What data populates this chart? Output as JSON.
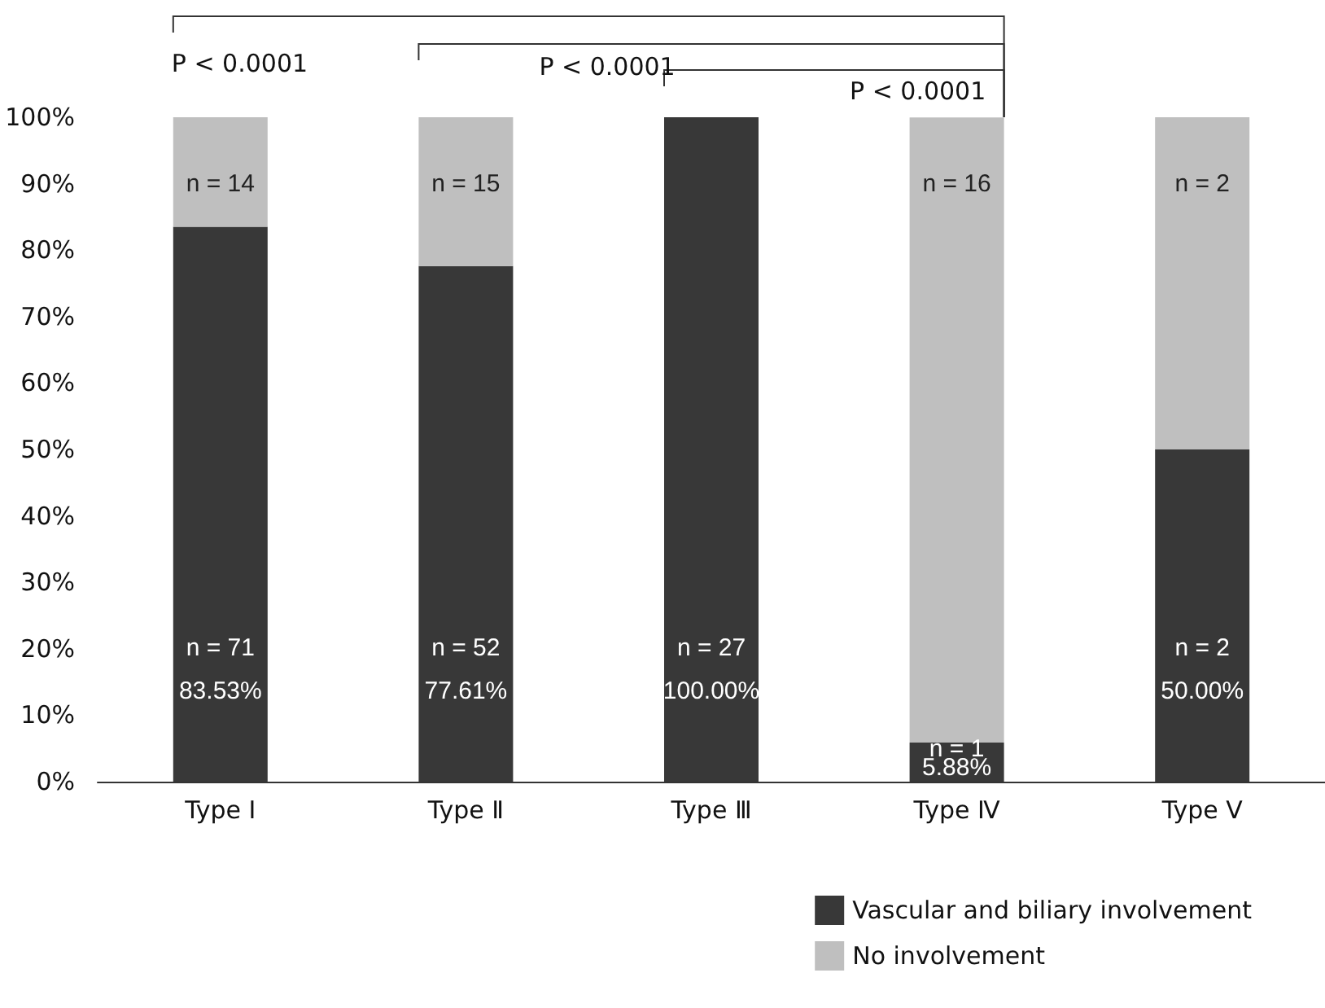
{
  "chart_data": {
    "type": "bar",
    "stacked": true,
    "categories": [
      "Type Ⅰ",
      "Type Ⅱ",
      "Type Ⅲ",
      "Type Ⅳ",
      "Type Ⅴ"
    ],
    "series": [
      {
        "name": "Vascular and biliary involvement",
        "color": "#383838",
        "values": [
          83.53,
          77.61,
          100,
          5.88,
          50
        ],
        "value_labels": [
          "83.53%",
          "77.61%",
          "100.00%",
          "5.88%",
          "50.00%"
        ]
      },
      {
        "name": "No involvement",
        "color": "#bfbfbf",
        "values": [
          16.5,
          22.4,
          0,
          94.1,
          50
        ]
      }
    ],
    "ylim": [
      0,
      100
    ],
    "yticks": [
      {
        "value": 0,
        "label": "0%"
      },
      {
        "value": 10,
        "label": "10%"
      },
      {
        "value": 20,
        "label": "20%"
      },
      {
        "value": 30,
        "label": "30%"
      },
      {
        "value": 40,
        "label": "40%"
      },
      {
        "value": 50,
        "label": "50%"
      },
      {
        "value": 60,
        "label": "60%"
      },
      {
        "value": 70,
        "label": "70%"
      },
      {
        "value": 80,
        "label": "80%"
      },
      {
        "value": 90,
        "label": "90%"
      },
      {
        "value": 100,
        "label": "100%"
      }
    ],
    "grid": false,
    "legend": "bottom right",
    "annotations": [
      "P < 0.0001",
      "P < 0.0001",
      "P < 0.0001",
      "n = 14",
      "n = 15",
      "n = 16",
      "n = 2",
      "n = 71",
      "n = 52",
      "n = 27",
      "n = 1",
      "n = 2"
    ]
  }
}
